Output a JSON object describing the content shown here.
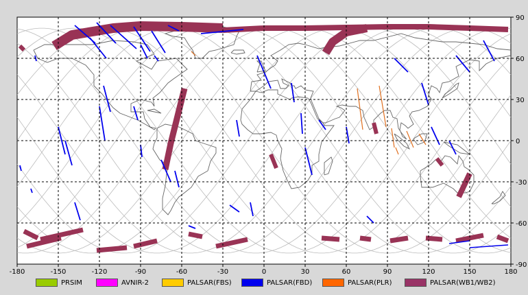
{
  "map": {
    "lon_ticks": [
      "-180",
      "-150",
      "-120",
      "-90",
      "-60",
      "-30",
      "0",
      "30",
      "60",
      "90",
      "120",
      "150",
      "180"
    ],
    "lat_ticks": [
      "90",
      "60",
      "30",
      "0",
      "-30",
      "-60",
      "-90"
    ],
    "lon_range": [
      -180,
      180
    ],
    "lat_range": [
      -90,
      90
    ],
    "grid": "dashed"
  },
  "legend": {
    "items": [
      {
        "label": "PRSIM",
        "color": "#99cc00"
      },
      {
        "label": "AVNIR-2",
        "color": "#ff00ff"
      },
      {
        "label": "PALSAR(FBS)",
        "color": "#ffcc00"
      },
      {
        "label": "PALSAR(FBD)",
        "color": "#0000ee"
      },
      {
        "label": "PALSAR(PLR)",
        "color": "#ff6600"
      },
      {
        "label": "PALSAR(WB1/WB2)",
        "color": "#993366"
      }
    ]
  },
  "colors": {
    "fbd": "#0000ee",
    "plr": "#e07020",
    "wb": "#993355",
    "coast": "#666666",
    "orbit": "#bbbbbb"
  }
}
